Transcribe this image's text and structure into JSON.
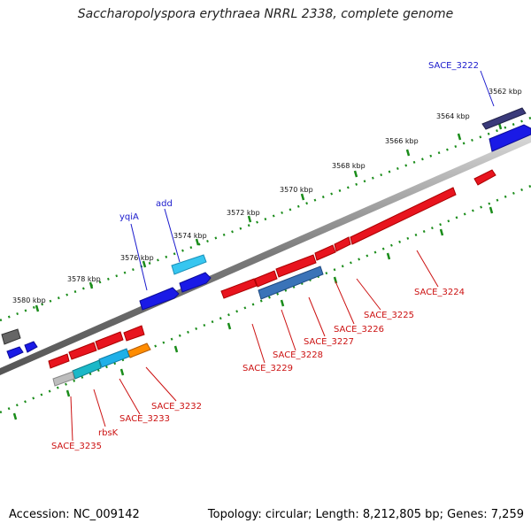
{
  "title": "Saccharopolyspora erythraea NRRL 2338, complete genome",
  "footer": {
    "accession": "Accession: NC_009142",
    "summary": "Topology: circular; Length: 8,212,805 bp; Genes: 7,259"
  },
  "kbp_labels": [
    "3562 kbp",
    "3564 kbp",
    "3566 kbp",
    "3568 kbp",
    "3570 kbp",
    "3572 kbp",
    "3574 kbp",
    "3576 kbp",
    "3578 kbp",
    "3580 kbp"
  ],
  "gene_labels": [
    {
      "text": "SACE_3222",
      "color": "#1a1acc"
    },
    {
      "text": "add",
      "color": "#1a1acc"
    },
    {
      "text": "yqiA",
      "color": "#1a1acc"
    },
    {
      "text": "SACE_3224",
      "color": "#cc1111"
    },
    {
      "text": "SACE_3225",
      "color": "#cc1111"
    },
    {
      "text": "SACE_3226",
      "color": "#cc1111"
    },
    {
      "text": "SACE_3227",
      "color": "#cc1111"
    },
    {
      "text": "SACE_3228",
      "color": "#cc1111"
    },
    {
      "text": "SACE_3229",
      "color": "#cc1111"
    },
    {
      "text": "SACE_3232",
      "color": "#cc1111"
    },
    {
      "text": "SACE_3233",
      "color": "#cc1111"
    },
    {
      "text": "rbsK",
      "color": "#cc1111"
    },
    {
      "text": "SACE_3235",
      "color": "#cc1111"
    }
  ],
  "colors": {
    "forward_strand": "#1a1acc",
    "reverse_strand": "#e8141e",
    "backbone": "#777777",
    "ticks": "#1a8c1a"
  }
}
